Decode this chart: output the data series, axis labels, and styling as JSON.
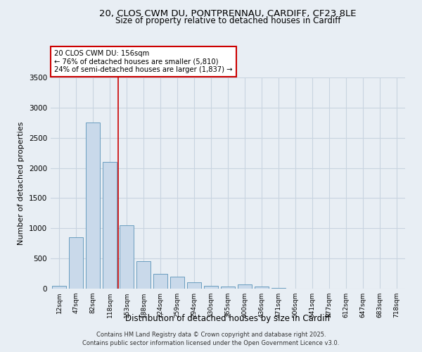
{
  "title_line1": "20, CLOS CWM DU, PONTPRENNAU, CARDIFF, CF23 8LE",
  "title_line2": "Size of property relative to detached houses in Cardiff",
  "xlabel": "Distribution of detached houses by size in Cardiff",
  "ylabel": "Number of detached properties",
  "categories": [
    "12sqm",
    "47sqm",
    "82sqm",
    "118sqm",
    "153sqm",
    "188sqm",
    "224sqm",
    "259sqm",
    "294sqm",
    "330sqm",
    "365sqm",
    "400sqm",
    "436sqm",
    "471sqm",
    "506sqm",
    "541sqm",
    "577sqm",
    "612sqm",
    "647sqm",
    "683sqm",
    "718sqm"
  ],
  "values": [
    50,
    850,
    2750,
    2100,
    1050,
    450,
    250,
    200,
    100,
    50,
    30,
    70,
    30,
    10,
    5,
    4,
    3,
    2,
    2,
    1,
    1
  ],
  "bar_color": "#c9d9ea",
  "bar_edge_color": "#6a9dbf",
  "grid_color": "#c8d4e0",
  "background_color": "#e8eef4",
  "red_line_x": 3.5,
  "annotation_title": "20 CLOS CWM DU: 156sqm",
  "annotation_line2": "← 76% of detached houses are smaller (5,810)",
  "annotation_line3": "24% of semi-detached houses are larger (1,837) →",
  "annotation_box_facecolor": "#ffffff",
  "annotation_box_edgecolor": "#cc0000",
  "vline_color": "#cc0000",
  "ylim": [
    0,
    3500
  ],
  "yticks": [
    0,
    500,
    1000,
    1500,
    2000,
    2500,
    3000,
    3500
  ],
  "footer_line1": "Contains HM Land Registry data © Crown copyright and database right 2025.",
  "footer_line2": "Contains public sector information licensed under the Open Government Licence v3.0."
}
